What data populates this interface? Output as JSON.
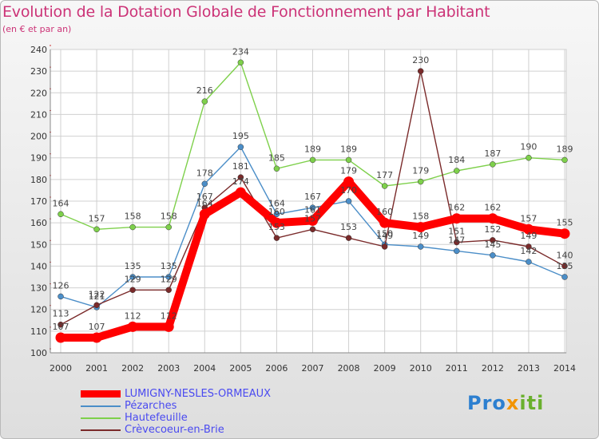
{
  "title": "Evolution de la Dotation Globale de Fonctionnement par Habitant",
  "subtitle": "(en € et par an)",
  "colors": {
    "title": "#cc3377",
    "grid": "#d0d0d0",
    "legend_text": "#4a4af0"
  },
  "logo": {
    "part1": "Pro",
    "part2": "x",
    "part3": "iti"
  },
  "chart_data": {
    "type": "line",
    "title": "Evolution de la Dotation Globale de Fonctionnement par Habitant",
    "subtitle": "(en € et par an)",
    "xlabel": "",
    "ylabel": "",
    "x": [
      "2000",
      "2001",
      "2002",
      "2003",
      "2004",
      "2005",
      "2006",
      "2007",
      "2008",
      "2009",
      "2010",
      "2011",
      "2012",
      "2013",
      "2014"
    ],
    "ylim": [
      100,
      240
    ],
    "yticks": [
      "100",
      "110",
      "120",
      "130",
      "140",
      "150",
      "160",
      "170",
      "180",
      "190",
      "200",
      "210",
      "220",
      "230",
      "240"
    ],
    "grid": true,
    "legend_position": "bottom-left",
    "series": [
      {
        "name": "LUMIGNY-NESLES-ORMEAUX",
        "color": "#ff0000",
        "width": "thick",
        "values": [
          107,
          107,
          112,
          112,
          164,
          174,
          160,
          161,
          179,
          160,
          158,
          162,
          162,
          157,
          155
        ],
        "labels": [
          "107",
          "107",
          "112",
          "112",
          "164",
          "174",
          "160",
          "161",
          "179",
          "160",
          "158",
          "162",
          "162",
          "157",
          "155"
        ]
      },
      {
        "name": "Pézarches",
        "color": "#4b8ec8",
        "width": "thin",
        "values": [
          126,
          121,
          135,
          135,
          178,
          195,
          164,
          167,
          170,
          150,
          149,
          147,
          145,
          142,
          135
        ],
        "labels": [
          "126",
          "121",
          "135",
          "135",
          "178",
          "195",
          "164",
          "167",
          "170",
          "150",
          "149",
          "147",
          "145",
          "142",
          "135"
        ]
      },
      {
        "name": "Hautefeuille",
        "color": "#7ed04b",
        "width": "thin",
        "values": [
          164,
          157,
          158,
          158,
          216,
          234,
          185,
          189,
          189,
          177,
          179,
          184,
          187,
          190,
          189
        ],
        "labels": [
          "164",
          "157",
          "158",
          "158",
          "216",
          "234",
          "185",
          "189",
          "189",
          "177",
          "179",
          "184",
          "187",
          "190",
          "189"
        ]
      },
      {
        "name": "Crèvecoeur-en-Brie",
        "color": "#7a2a2a",
        "width": "thin",
        "values": [
          113,
          122,
          129,
          129,
          167,
          181,
          153,
          157,
          153,
          149,
          230,
          151,
          152,
          149,
          140
        ],
        "labels": [
          "113",
          "122",
          "129",
          "129",
          "167",
          "181",
          "153",
          "157",
          "153",
          "149",
          "230",
          "151",
          "152",
          "149",
          "140"
        ]
      }
    ]
  }
}
